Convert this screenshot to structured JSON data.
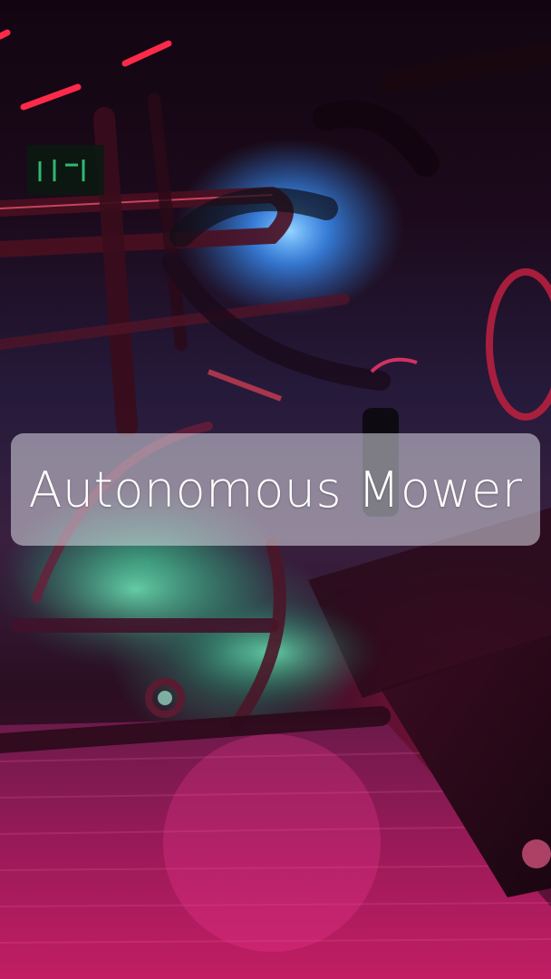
{
  "title": "Autonomous Mower",
  "colors": {
    "banner_bg": "#dcdce6",
    "title_text": "#ffffff",
    "accent_red": "#ff2060",
    "accent_blue": "#3aa8ff",
    "accent_green": "#30d890"
  }
}
